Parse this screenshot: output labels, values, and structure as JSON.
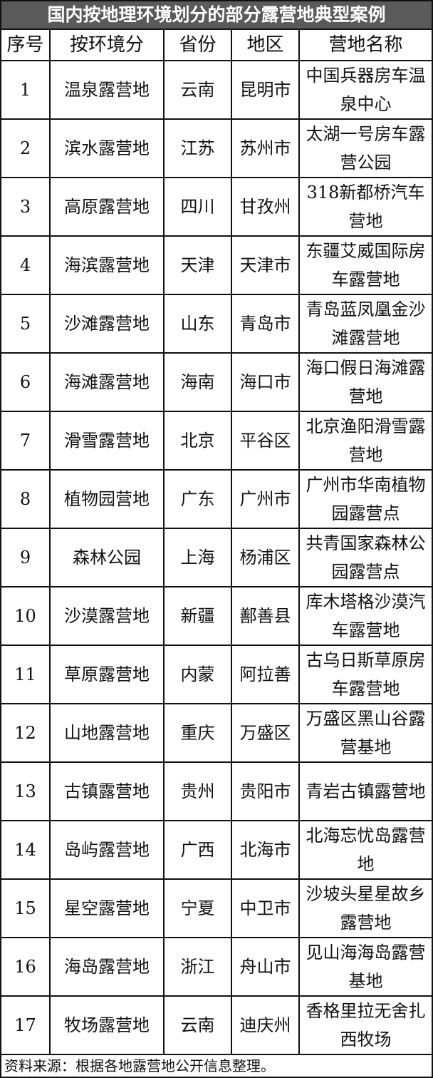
{
  "title": "国内按地理环境划分的部分露营地典型案例",
  "headers": [
    "序号",
    "按环境分",
    "省份",
    "地区",
    "营地名称"
  ],
  "rows": [
    [
      "1",
      "温泉露营地",
      "云南",
      "昆明市",
      "中国兵器房车温泉中心"
    ],
    [
      "2",
      "滨水露营地",
      "江苏",
      "苏州市",
      "太湖一号房车露营公园"
    ],
    [
      "3",
      "高原露营地",
      "四川",
      "甘孜州",
      "318新都桥汽车营地"
    ],
    [
      "4",
      "海滨露营地",
      "天津",
      "天津市",
      "东疆艾威国际房车露营地"
    ],
    [
      "5",
      "沙滩露营地",
      "山东",
      "青岛市",
      "青岛蓝凤凰金沙滩露营地"
    ],
    [
      "6",
      "海滩露营地",
      "海南",
      "海口市",
      "海口假日海滩露营地"
    ],
    [
      "7",
      "滑雪露营地",
      "北京",
      "平谷区",
      "北京渔阳滑雪露营地"
    ],
    [
      "8",
      "植物园营地",
      "广东",
      "广州市",
      "广州市华南植物园露营点"
    ],
    [
      "9",
      "森林公园",
      "上海",
      "杨浦区",
      "共青国家森林公园露营点"
    ],
    [
      "10",
      "沙漠露营地",
      "新疆",
      "鄯善县",
      "库木塔格沙漠汽车露营地"
    ],
    [
      "11",
      "草原露营地",
      "内蒙",
      "阿拉善",
      "古乌日斯草原房车露营地"
    ],
    [
      "12",
      "山地露营地",
      "重庆",
      "万盛区",
      "万盛区黑山谷露营基地"
    ],
    [
      "13",
      "古镇露营地",
      "贵州",
      "贵阳市",
      "青岩古镇露营地"
    ],
    [
      "14",
      "岛屿露营地",
      "广西",
      "北海市",
      "北海忘忧岛露营地"
    ],
    [
      "15",
      "星空露营地",
      "宁夏",
      "中卫市",
      "沙坡头星星故乡露营地"
    ],
    [
      "16",
      "海岛露营地",
      "浙江",
      "舟山市",
      "见山海海岛露营基地"
    ],
    [
      "17",
      "牧场露营地",
      "云南",
      "迪庆州",
      "香格里拉无舍扎西牧场"
    ]
  ],
  "footer": "资料来源：根据各地露营地公开信息整理。",
  "colors": {
    "title_bg": "#5a5a5a",
    "title_text": "#ffffff",
    "border": "#111111"
  }
}
